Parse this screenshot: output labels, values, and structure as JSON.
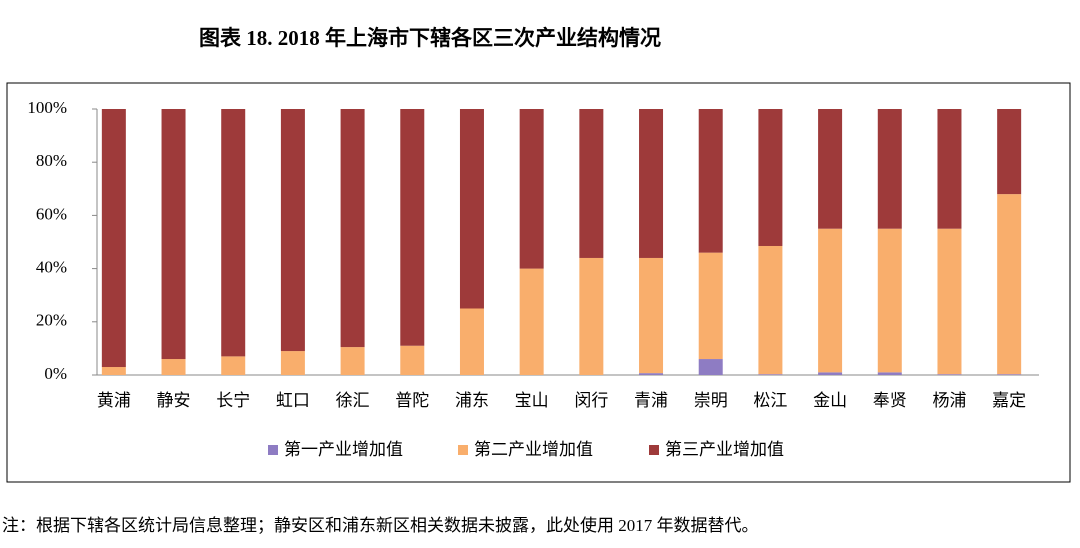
{
  "chart_data": {
    "type": "stacked_bar",
    "title": "图表 18. 2018 年上海市下辖各区三次产业结构情况",
    "note": "注：根据下辖各区统计局信息整理；静安区和浦东新区相关数据未披露，此处使用 2017 年数据替代。",
    "categories": [
      "黄浦",
      "静安",
      "长宁",
      "虹口",
      "徐汇",
      "普陀",
      "浦东",
      "宝山",
      "闵行",
      "青浦",
      "崇明",
      "松江",
      "金山",
      "奉贤",
      "杨浦",
      "嘉定"
    ],
    "series": [
      {
        "name": "第一产业增加值",
        "color": "#8e7cc3",
        "values": [
          0,
          0,
          0,
          0,
          0,
          0,
          0,
          0,
          0,
          0.7,
          6,
          0.3,
          1,
          1,
          0.3,
          0.3
        ]
      },
      {
        "name": "第二产业增加值",
        "color": "#f9ae6c",
        "values": [
          3,
          6,
          7,
          9,
          10.5,
          11,
          25,
          40,
          44,
          43.3,
          40,
          48.2,
          54,
          54,
          54.7,
          67.7
        ]
      },
      {
        "name": "第三产业增加值",
        "color": "#9e3a3a",
        "values": [
          97,
          94,
          93,
          91,
          89.5,
          89,
          75,
          60,
          56,
          56,
          54,
          51.5,
          45,
          45,
          45,
          32
        ]
      }
    ],
    "ylim": [
      0,
      100
    ],
    "yticks": [
      {
        "value": 0,
        "label": "0%"
      },
      {
        "value": 20,
        "label": "20%"
      },
      {
        "value": 40,
        "label": "40%"
      },
      {
        "value": 60,
        "label": "60%"
      },
      {
        "value": 80,
        "label": "80%"
      },
      {
        "value": 100,
        "label": "100%"
      }
    ],
    "legend": "bottom"
  }
}
